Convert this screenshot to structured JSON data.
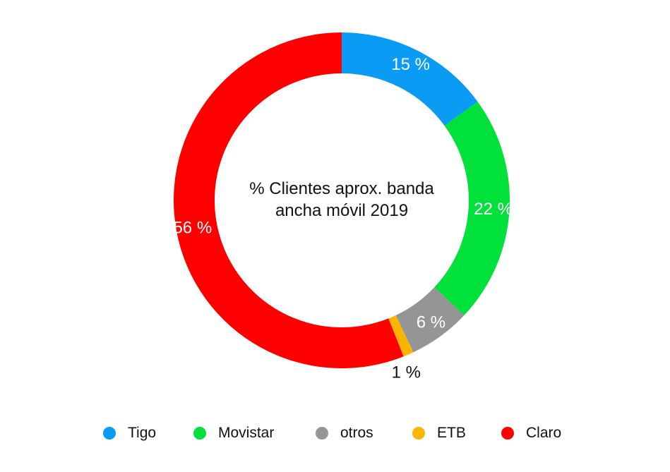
{
  "chart_data": {
    "type": "pie",
    "title": "% Clientes aprox. banda ancha móvil 2019",
    "title_lines": [
      "% Clientes aprox. banda",
      "ancha móvil 2019"
    ],
    "categories": [
      "Tigo",
      "Movistar",
      "otros",
      "ETB",
      "Claro"
    ],
    "values": [
      15,
      22,
      6,
      1,
      56
    ],
    "data_labels": [
      "15 %",
      "22 %",
      "6 %",
      "1 %",
      "56 %"
    ],
    "colors": [
      "#0a9cf5",
      "#00e13b",
      "#959595",
      "#ffb400",
      "#ff0000"
    ],
    "legend_position": "bottom",
    "donut": true
  }
}
